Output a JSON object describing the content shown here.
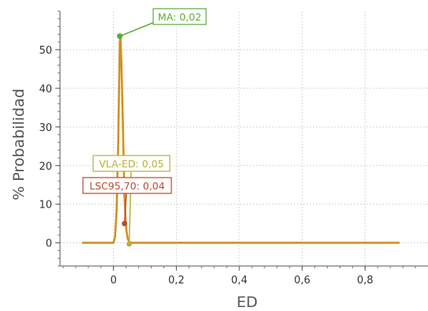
{
  "chart_data": {
    "type": "line",
    "title": "",
    "xlabel": "ED",
    "ylabel": "% Probabilidad",
    "xlim": [
      -0.17,
      1.0
    ],
    "ylim": [
      -6,
      60
    ],
    "grid": true,
    "x_ticks": [
      0,
      0.2,
      0.4,
      0.6,
      0.8
    ],
    "x_tick_labels": [
      "0",
      "0,2",
      "0,4",
      "0,6",
      "0,8"
    ],
    "y_ticks": [
      0,
      10,
      20,
      30,
      40,
      50
    ],
    "y_tick_labels": [
      "0",
      "10",
      "20",
      "30",
      "40",
      "50"
    ],
    "series": [
      {
        "color": "#d4901f",
        "x": [
          -0.1,
          0.0,
          0.0,
          0.005,
          0.01,
          0.015,
          0.018,
          0.02,
          0.022,
          0.025,
          0.03,
          0.035,
          0.04,
          0.045,
          0.05,
          0.055,
          0.06,
          0.07,
          0.1,
          0.3,
          0.5,
          0.7,
          0.91
        ],
        "values": [
          0,
          0,
          0.1,
          1.5,
          8.5,
          26,
          42,
          52,
          53.5,
          47,
          30,
          12,
          4,
          1.2,
          0.3,
          0.08,
          0,
          0,
          0,
          0,
          0,
          0,
          0
        ]
      }
    ],
    "annotations": [
      {
        "label": "MA: 0,02",
        "x": 0.02,
        "y": 53.5,
        "color": "#5aaa3a"
      },
      {
        "label": "VLA-ED: 0,05",
        "x": 0.05,
        "y": -0.3,
        "color": "#b5b03a"
      },
      {
        "label": "LSC95,70: 0,04",
        "x": 0.035,
        "y": 5,
        "color": "#b84a2c"
      }
    ]
  }
}
